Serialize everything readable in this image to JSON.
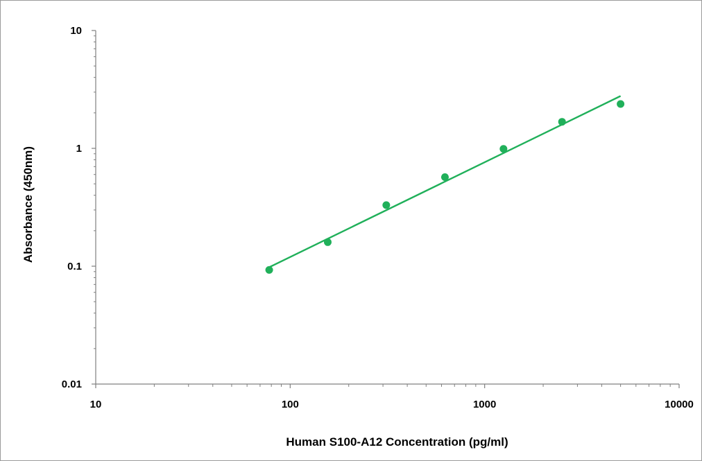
{
  "chart_data": {
    "type": "scatter",
    "title": "",
    "xlabel": "Human S100-A12 Concentration (pg/ml)",
    "ylabel": "Absorbance (450nm)",
    "x_scale": "log",
    "y_scale": "log",
    "xlim": [
      10,
      10000
    ],
    "ylim": [
      0.01,
      10
    ],
    "x_tick_labels": [
      "10",
      "100",
      "1000",
      "10000"
    ],
    "y_tick_labels": [
      "0.01",
      "0.1",
      "1",
      "10"
    ],
    "grid": false,
    "legend": "none",
    "series": [
      {
        "x": [
          78,
          156,
          312,
          625,
          1250,
          2500,
          5000
        ],
        "y": [
          0.093,
          0.16,
          0.33,
          0.57,
          0.99,
          1.68,
          2.38
        ]
      }
    ],
    "trendline": {
      "type": "power",
      "from": [
        78,
        0.098
      ],
      "to": [
        5000,
        2.78
      ]
    },
    "colors": {
      "series": "#20b05a",
      "axis": "#7f7f7f"
    }
  }
}
